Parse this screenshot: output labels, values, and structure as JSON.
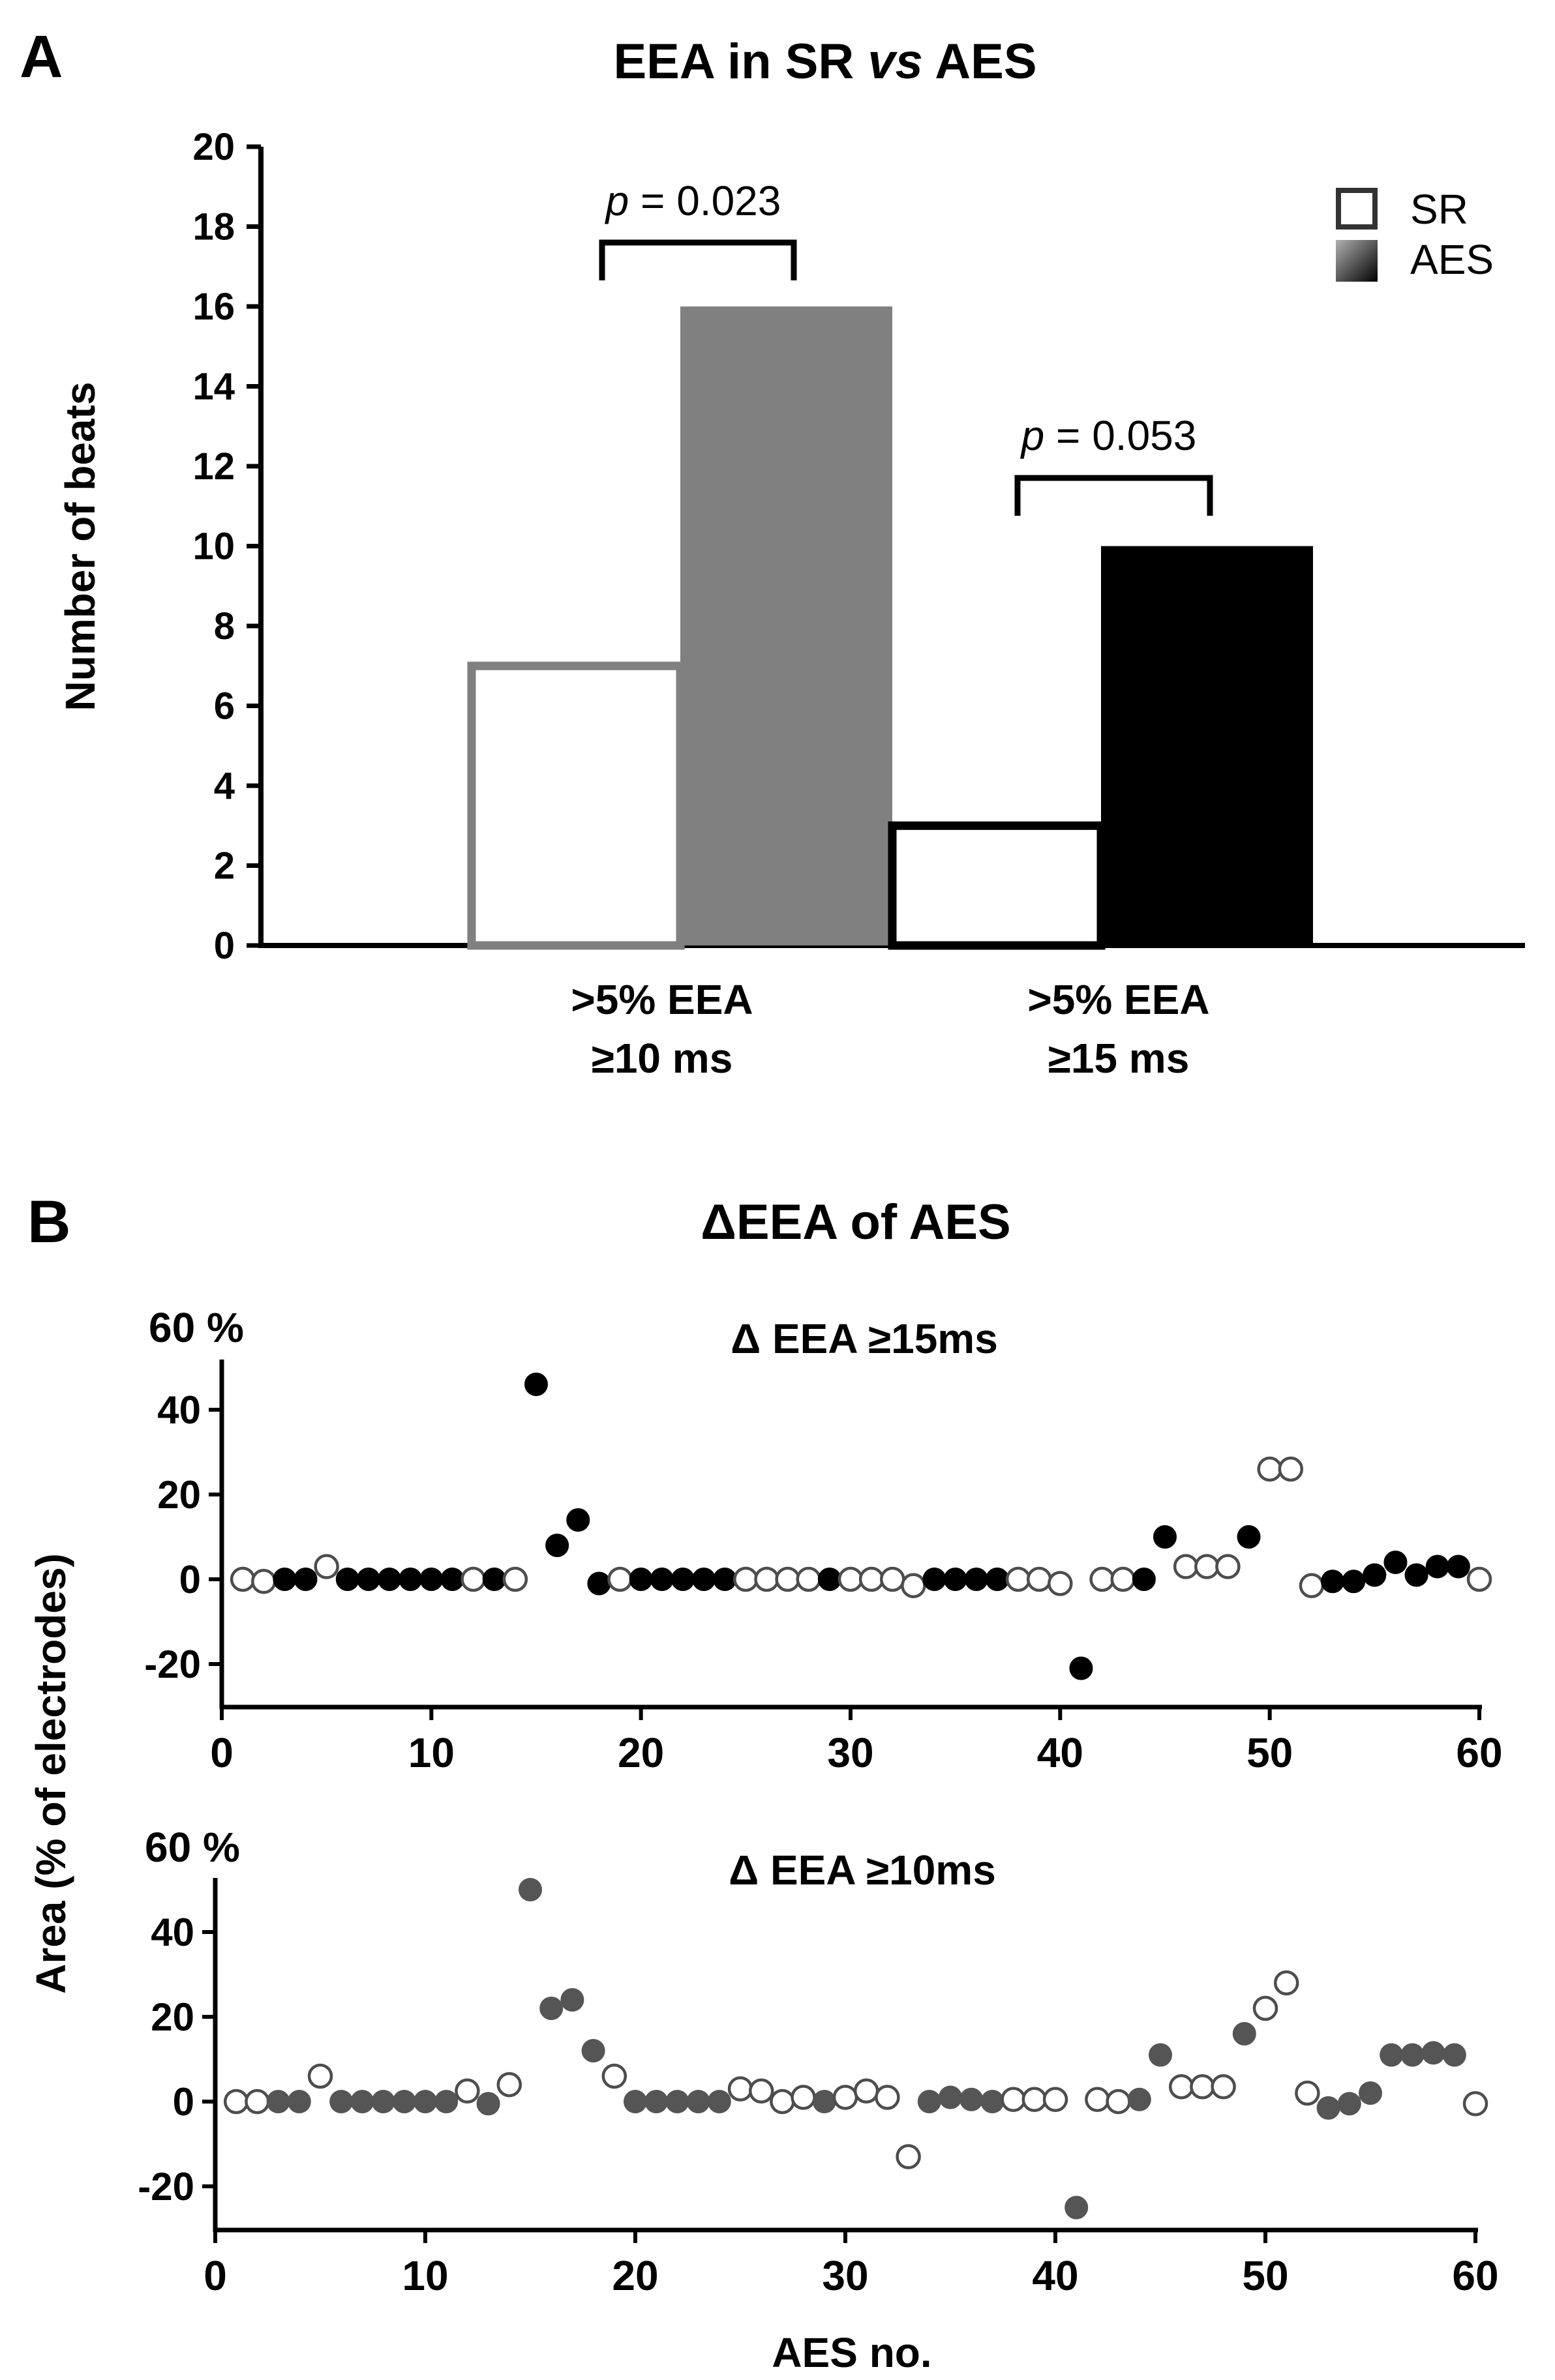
{
  "panel_a": {
    "letter": "A",
    "title_pre": "EEA in SR ",
    "title_vs": "vs",
    "title_post": " AES",
    "ylabel": "Number of beats",
    "legend": [
      {
        "label": "SR",
        "style": "open"
      },
      {
        "label": "AES",
        "style": "gradient"
      }
    ],
    "p_italic": "p",
    "annotations": [
      {
        "text": " = 0.023"
      },
      {
        "text": " = 0.053"
      }
    ],
    "category_lines": [
      [
        ">5% EEA",
        "≥10 ms"
      ],
      [
        ">5% EEA",
        "≥15 ms"
      ]
    ]
  },
  "panel_b": {
    "letter": "B",
    "title": "ΔEEA of AES",
    "ylabel": "Area (% of electrodes)",
    "xlabel": "AES no.",
    "top_label": "60 %",
    "subtitles": [
      "Δ EEA ≥15ms",
      "Δ EEA ≥10ms"
    ]
  },
  "colors": {
    "axis": "#000000",
    "sr_10_outline": "#808080",
    "aes_10_fill": "#808080",
    "sr_15_outline": "#000000",
    "aes_15_fill": "#000000",
    "marker_15": "#000000",
    "marker_10": "#555555",
    "open_fill": "#ffffff",
    "open_edge": "#4d4d4d"
  },
  "chart_data": [
    {
      "type": "bar",
      "title": "EEA in SR vs AES",
      "ylabel": "Number of beats",
      "xlabel": "",
      "ylim": [
        0,
        20
      ],
      "yticks": [
        0,
        2,
        4,
        6,
        8,
        10,
        12,
        14,
        16,
        18,
        20
      ],
      "categories": [
        ">5% EEA ≥10 ms",
        ">5% EEA ≥15 ms"
      ],
      "series": [
        {
          "name": "SR",
          "values": [
            7,
            3
          ]
        },
        {
          "name": "AES",
          "values": [
            16,
            10
          ]
        }
      ],
      "annotations": [
        "p = 0.023",
        "p = 0.053"
      ],
      "legend_position": "top-right",
      "grid": false
    },
    {
      "type": "scatter",
      "title": "Δ EEA ≥15ms",
      "ylabel": "Area (% of electrodes)",
      "xlabel": "",
      "xlim": [
        0,
        60
      ],
      "ylim": [
        -30,
        60
      ],
      "xticks": [
        0,
        10,
        20,
        30,
        40,
        50,
        60
      ],
      "yticks": [
        -20,
        0,
        20,
        40
      ],
      "grid": false,
      "x": [
        1,
        2,
        3,
        4,
        5,
        6,
        7,
        8,
        9,
        10,
        11,
        12,
        13,
        14,
        15,
        16,
        17,
        18,
        19,
        20,
        21,
        22,
        23,
        24,
        25,
        26,
        27,
        28,
        29,
        30,
        31,
        32,
        33,
        34,
        35,
        36,
        37,
        38,
        39,
        40,
        41,
        42,
        43,
        44,
        45,
        46,
        47,
        48,
        49,
        50,
        51,
        52,
        53,
        54,
        55,
        56,
        57,
        58,
        59,
        60
      ],
      "y": [
        0,
        -0.5,
        0,
        0,
        3,
        0,
        0,
        0,
        0,
        0,
        0,
        0,
        0,
        0,
        46,
        8,
        14,
        -1,
        0,
        0,
        0,
        0,
        0,
        0,
        0,
        0,
        0,
        0,
        0,
        0,
        0,
        0,
        -1.5,
        0,
        0,
        0,
        0,
        0,
        0,
        -1,
        -21,
        0,
        0,
        0,
        10,
        3,
        3,
        3,
        10,
        26,
        26,
        -1.5,
        -0.5,
        -0.5,
        1,
        4,
        1,
        3,
        3,
        0
      ],
      "filled": [
        0,
        0,
        1,
        1,
        0,
        1,
        1,
        1,
        1,
        1,
        1,
        0,
        1,
        0,
        1,
        1,
        1,
        1,
        0,
        1,
        1,
        1,
        1,
        1,
        0,
        0,
        0,
        0,
        1,
        0,
        0,
        0,
        0,
        1,
        1,
        1,
        1,
        0,
        0,
        0,
        1,
        0,
        0,
        1,
        1,
        0,
        0,
        0,
        1,
        0,
        0,
        0,
        1,
        1,
        1,
        1,
        1,
        1,
        1,
        0
      ]
    },
    {
      "type": "scatter",
      "title": "Δ EEA ≥10ms",
      "ylabel": "Area (% of electrodes)",
      "xlabel": "AES no.",
      "xlim": [
        0,
        60
      ],
      "ylim": [
        -30,
        60
      ],
      "xticks": [
        0,
        10,
        20,
        30,
        40,
        50,
        60
      ],
      "yticks": [
        -20,
        0,
        20,
        40
      ],
      "grid": false,
      "x": [
        1,
        2,
        3,
        4,
        5,
        6,
        7,
        8,
        9,
        10,
        11,
        12,
        13,
        14,
        15,
        16,
        17,
        18,
        19,
        20,
        21,
        22,
        23,
        24,
        25,
        26,
        27,
        28,
        29,
        30,
        31,
        32,
        33,
        34,
        35,
        36,
        37,
        38,
        39,
        40,
        41,
        42,
        43,
        44,
        45,
        46,
        47,
        48,
        49,
        50,
        51,
        52,
        53,
        54,
        55,
        56,
        57,
        58,
        59,
        60
      ],
      "y": [
        0,
        0,
        0,
        0,
        6,
        0,
        0,
        0,
        0,
        0,
        0,
        2.5,
        -0.5,
        4,
        50,
        22,
        24,
        12,
        6,
        0,
        0,
        0,
        0,
        0,
        3,
        2.5,
        0,
        1,
        0,
        1,
        2.5,
        1,
        -13,
        0,
        1,
        0.5,
        0,
        0.5,
        0.5,
        0.5,
        -25,
        0.5,
        0,
        0.5,
        11,
        3.5,
        3.5,
        3.5,
        16,
        22,
        28,
        2,
        -1.5,
        -0.5,
        2,
        11,
        11,
        11.5,
        11,
        -0.5
      ],
      "filled": [
        0,
        0,
        1,
        1,
        0,
        1,
        1,
        1,
        1,
        1,
        1,
        0,
        1,
        0,
        1,
        1,
        1,
        1,
        0,
        1,
        1,
        1,
        1,
        1,
        0,
        0,
        0,
        0,
        1,
        0,
        0,
        0,
        0,
        1,
        1,
        1,
        1,
        0,
        0,
        0,
        1,
        0,
        0,
        1,
        1,
        0,
        0,
        0,
        1,
        0,
        0,
        0,
        1,
        1,
        1,
        1,
        1,
        1,
        1,
        0
      ]
    }
  ]
}
